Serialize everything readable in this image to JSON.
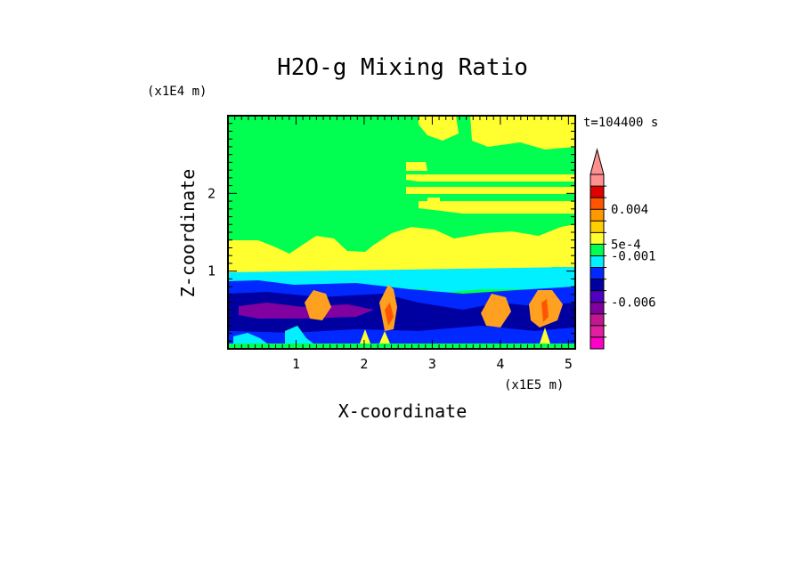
{
  "chart_data": {
    "type": "heatmap",
    "title": "H2O-g Mixing Ratio",
    "xlabel": "X-coordinate",
    "ylabel": "Z-coordinate",
    "x_unit": "(x1E5 m)",
    "y_unit": "(x1E4 m)",
    "time_label": "t=104400 s",
    "xlim": [
      0,
      5.1
    ],
    "ylim": [
      0,
      3.0
    ],
    "x_ticks": [
      "1",
      "2",
      "3",
      "4",
      "5"
    ],
    "y_ticks": [
      "1",
      "2"
    ],
    "colorbar": {
      "tick_labels": [
        "0.004",
        "5e-4",
        "-0.001",
        "-0.006"
      ],
      "colors_bottom_to_top": [
        "#ff00c8",
        "#e020a0",
        "#c01890",
        "#8000a0",
        "#5000c0",
        "#0000a0",
        "#0028ff",
        "#00f0ff",
        "#00ff50",
        "#ffff30",
        "#ffd000",
        "#ff9900",
        "#ff5500",
        "#e00000",
        "#ff9090"
      ],
      "extend": "max"
    },
    "regions": [
      {
        "name": "upper-moist",
        "color": "#00ff50"
      },
      {
        "name": "yellow-band",
        "color": "#ffff30"
      },
      {
        "name": "cyan-layer",
        "color": "#00f0ff"
      },
      {
        "name": "blue-layer",
        "color": "#0028ff"
      },
      {
        "name": "darkblue-layer",
        "color": "#0000a0"
      },
      {
        "name": "purple-core",
        "color": "#8000a0"
      },
      {
        "name": "orange-plumes",
        "color": "#ffa020"
      }
    ]
  }
}
